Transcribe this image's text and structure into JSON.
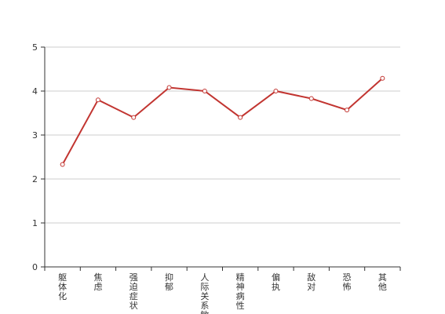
{
  "chart_data": {
    "type": "line",
    "categories": [
      "躯体化",
      "焦虑",
      "强迫症状",
      "抑郁",
      "人际关系敏感",
      "精神病性",
      "偏执",
      "敌对",
      "恐怖",
      "其他"
    ],
    "series": [
      {
        "color": "#c23531",
        "values": [
          2.33,
          3.8,
          3.4,
          4.08,
          4.0,
          3.4,
          4.0,
          3.83,
          3.57,
          4.29
        ]
      }
    ],
    "ylim": [
      0,
      5
    ],
    "yticks": [
      0,
      1,
      2,
      3,
      4,
      5
    ],
    "grid": true
  }
}
